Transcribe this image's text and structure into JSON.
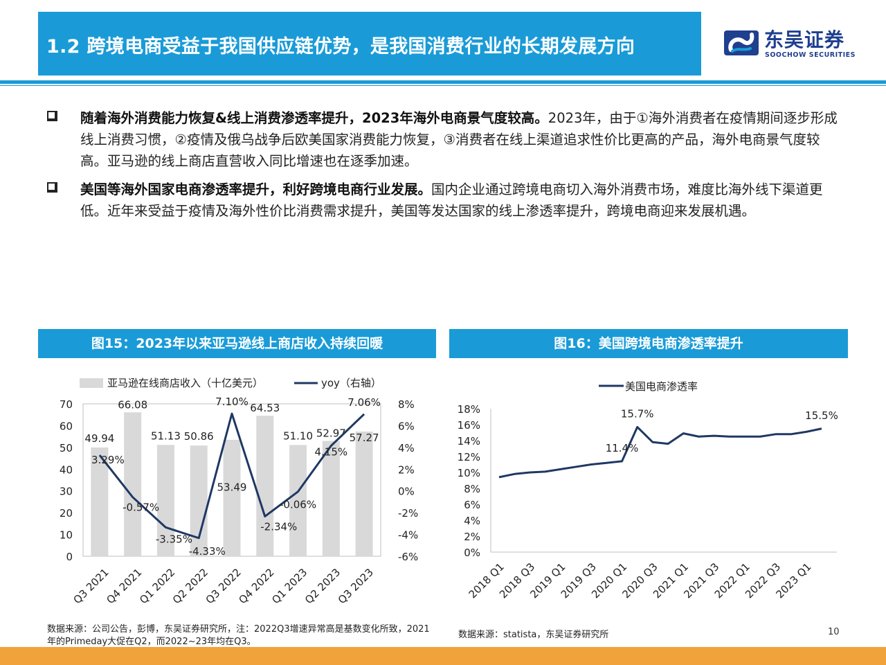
{
  "header": {
    "title": "1.2 跨境电商受益于我国供应链优势，是我国消费行业的长期发展方向",
    "logo_cn": "东吴证券",
    "logo_en": "SOOCHOW SECURITIES"
  },
  "bullets": [
    {
      "bold": "随着海外消费能力恢复&线上消费渗透率提升，2023年海外电商景气度较高。",
      "text": "2023年，由于①海外消费者在疫情期间逐步形成线上消费习惯，②疫情及俄乌战争后欧美国家消费能力恢复，③消费者在线上渠道追求性价比更高的产品，海外电商景气度较高。亚马逊的线上商店直营收入同比增速也在逐季加速。"
    },
    {
      "bold": "美国等海外国家电商渗透率提升，利好跨境电商行业发展。",
      "text": "国内企业通过跨境电商切入海外消费市场，难度比海外线下渠道更低。近年来受益于疫情及海外性价比消费需求提升，美国等发达国家的线上渗透率提升，跨境电商迎来发展机遇。"
    }
  ],
  "figures": {
    "fig15_title": "图15：2023年以来亚马逊线上商店收入持续回暖",
    "fig16_title": "图16：美国跨境电商渗透率提升",
    "fig15_note": "数据来源：公司公告，彭博，东吴证券研究所，注：2022Q3增速异常高是基数变化所致，2021年的Primeday大促在Q2，而2022~23年均在Q3。",
    "fig16_note": "数据来源：statista，东吴证券研究所"
  },
  "page_number": "10",
  "colors": {
    "accent": "#1a9bd7",
    "line": "#1f3864",
    "bar": "#d9d9d9",
    "bottom": "#f2a23a",
    "logo": "#1f3f8f"
  },
  "chart_data": [
    {
      "type": "bar",
      "categories": [
        "Q3 2021",
        "Q4 2021",
        "Q1 2022",
        "Q2 2022",
        "Q3 2022",
        "Q4 2022",
        "Q1 2023",
        "Q2 2023",
        "Q3 2023"
      ],
      "series": [
        {
          "name": "亚马逊在线商店收入（十亿美元）",
          "type": "bar",
          "axis": "left",
          "values": [
            49.94,
            66.08,
            51.13,
            50.86,
            53.49,
            64.53,
            51.1,
            52.97,
            57.27
          ],
          "labels": [
            "49.94",
            "66.08",
            "51.13",
            "50.86",
            "53.49",
            "64.53",
            "51.10",
            "52.97",
            "57.27"
          ]
        },
        {
          "name": "yoy（右轴）",
          "type": "line",
          "axis": "right",
          "values": [
            3.29,
            -0.57,
            -3.35,
            -4.33,
            7.1,
            -2.34,
            -0.06,
            4.15,
            7.06
          ],
          "labels": [
            "3.29%",
            "-0.57%",
            "-3.35%",
            "-4.33%",
            "7.10%",
            "-2.34%",
            "-0.06%",
            "4.15%",
            "7.06%"
          ]
        }
      ],
      "left_axis": {
        "ticks": [
          "70",
          "60",
          "50",
          "40",
          "30",
          "20",
          "10",
          "0"
        ],
        "ylim": [
          0,
          70
        ]
      },
      "right_axis": {
        "ticks": [
          "8%",
          "6%",
          "4%",
          "2%",
          "0%",
          "-2%",
          "-4%",
          "-6%"
        ],
        "ylim": [
          -6,
          8
        ]
      },
      "legend": "top",
      "grid": false
    },
    {
      "type": "line",
      "series": [
        {
          "name": "美国电商渗透率",
          "values": [
            9.4,
            9.8,
            10.0,
            10.1,
            10.4,
            10.7,
            11.0,
            11.2,
            11.4,
            15.7,
            13.8,
            13.6,
            14.9,
            14.5,
            14.6,
            14.5,
            14.5,
            14.5,
            14.8,
            14.8,
            15.1,
            15.5
          ]
        }
      ],
      "x_tick_labels": [
        "2018 Q1",
        "2018 Q3",
        "2019 Q1",
        "2019 Q3",
        "2020 Q1",
        "2020 Q3",
        "2021 Q1",
        "2021 Q3",
        "2022 Q1",
        "2022 Q3",
        "2023 Q1"
      ],
      "annotations": [
        "15.7%",
        "11.4%",
        "15.5%"
      ],
      "y_ticks": [
        "18%",
        "16%",
        "14%",
        "12%",
        "10%",
        "8%",
        "6%",
        "4%",
        "2%",
        "0%"
      ],
      "ylim": [
        0,
        18
      ],
      "legend": "top",
      "grid": false
    }
  ]
}
